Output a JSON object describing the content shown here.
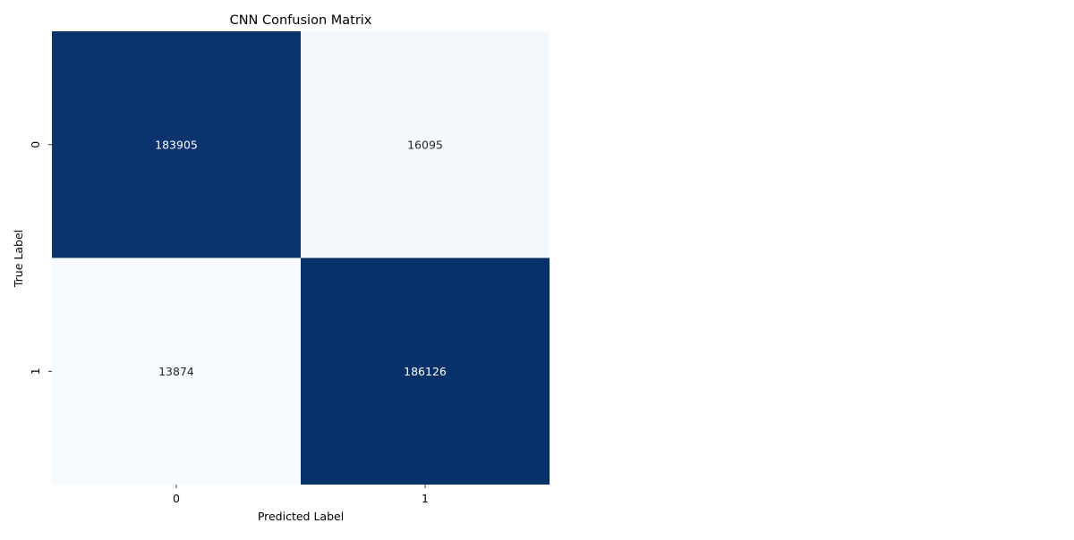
{
  "chart_data": {
    "type": "heatmap",
    "title": "CNN Confusion Matrix",
    "xlabel": "Predicted Label",
    "ylabel": "True Label",
    "x_categories": [
      "0",
      "1"
    ],
    "y_categories": [
      "0",
      "1"
    ],
    "values": [
      [
        183905,
        16095
      ],
      [
        13874,
        186126
      ]
    ],
    "colormap": "Blues",
    "color_low": "#f7fbff",
    "color_high": "#08306b",
    "text_color_on_dark": "#ffffff",
    "text_color_on_light": "#262626",
    "colorbar": false,
    "grid": false
  }
}
